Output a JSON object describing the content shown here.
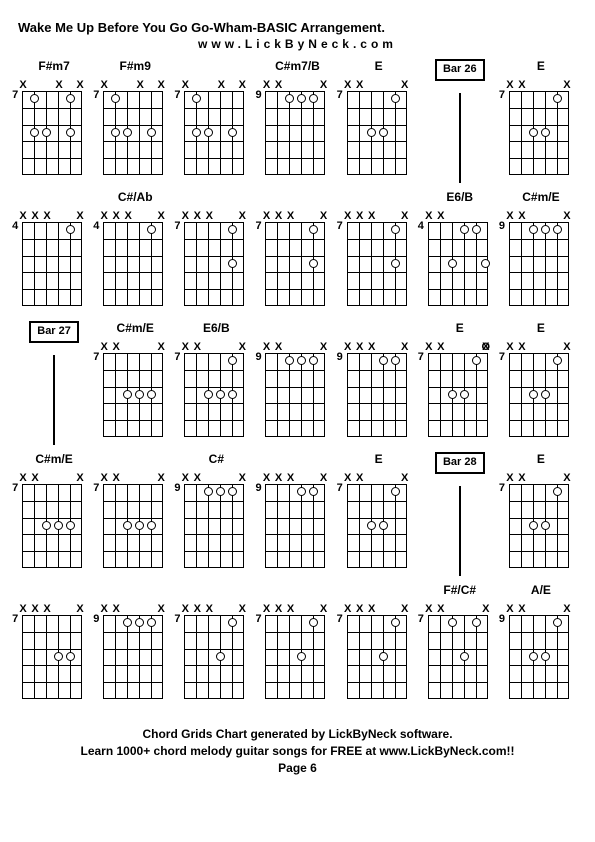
{
  "title": "Wake Me Up Before You Go Go-Wham-BASIC Arrangement.",
  "subtitle": "www.LickByNeck.com",
  "footer_line1": "Chord Grids Chart generated by LickByNeck software.",
  "footer_line2": "Learn 1000+ chord melody guitar songs for FREE at www.LickByNeck.com!!",
  "footer_page": "Page 6",
  "rows": [
    [
      {
        "type": "chord",
        "label": "F#m7",
        "fret": "7",
        "x": [
          0,
          3,
          5
        ],
        "dots": [
          [
            1,
            2
          ],
          [
            2,
            2
          ],
          [
            4,
            2
          ],
          [
            1,
            0
          ],
          [
            4,
            0
          ]
        ]
      },
      {
        "type": "chord",
        "label": "F#m9",
        "fret": "7",
        "x": [
          0,
          3,
          5
        ],
        "dots": [
          [
            1,
            2
          ],
          [
            2,
            2
          ],
          [
            4,
            2
          ],
          [
            1,
            0
          ]
        ]
      },
      {
        "type": "chord",
        "label": "",
        "fret": "7",
        "x": [
          0,
          3,
          5
        ],
        "dots": [
          [
            1,
            2
          ],
          [
            2,
            2
          ],
          [
            4,
            2
          ],
          [
            1,
            0
          ]
        ]
      },
      {
        "type": "chord",
        "label": "C#m7/B",
        "fret": "9",
        "x": [
          0,
          1,
          5
        ],
        "dots": [
          [
            2,
            0
          ],
          [
            3,
            0
          ],
          [
            4,
            0
          ]
        ]
      },
      {
        "type": "chord",
        "label": "E",
        "fret": "7",
        "x": [
          0,
          1,
          5
        ],
        "dots": [
          [
            2,
            2
          ],
          [
            3,
            2
          ],
          [
            4,
            0
          ]
        ]
      },
      {
        "type": "bar",
        "label": "Bar 26"
      },
      {
        "type": "chord",
        "label": "E",
        "fret": "7",
        "x": [
          0,
          1,
          5
        ],
        "dots": [
          [
            2,
            2
          ],
          [
            3,
            2
          ],
          [
            4,
            0
          ]
        ]
      }
    ],
    [
      {
        "type": "chord",
        "label": "",
        "fret": "4",
        "x": [
          0,
          1,
          2,
          5
        ],
        "dots": [
          [
            4,
            0
          ]
        ]
      },
      {
        "type": "chord",
        "label": "C#/Ab",
        "fret": "4",
        "x": [
          0,
          1,
          2,
          5
        ],
        "dots": [
          [
            4,
            0
          ]
        ]
      },
      {
        "type": "chord",
        "label": "",
        "fret": "7",
        "x": [
          0,
          1,
          2,
          5
        ],
        "dots": [
          [
            4,
            0
          ],
          [
            4,
            2
          ]
        ]
      },
      {
        "type": "chord",
        "label": "",
        "fret": "7",
        "x": [
          0,
          1,
          2,
          5
        ],
        "dots": [
          [
            4,
            0
          ],
          [
            4,
            2
          ]
        ]
      },
      {
        "type": "chord",
        "label": "",
        "fret": "7",
        "x": [
          0,
          1,
          2,
          5
        ],
        "dots": [
          [
            4,
            0
          ],
          [
            4,
            2
          ]
        ]
      },
      {
        "type": "chord",
        "label": "E6/B",
        "fret": "4",
        "x": [
          0,
          1
        ],
        "dots": [
          [
            2,
            2
          ],
          [
            3,
            0
          ],
          [
            5,
            2
          ],
          [
            4,
            0
          ]
        ]
      },
      {
        "type": "chord",
        "label": "C#m/E",
        "fret": "9",
        "x": [
          0,
          1,
          5
        ],
        "dots": [
          [
            2,
            0
          ],
          [
            3,
            0
          ],
          [
            4,
            0
          ]
        ]
      }
    ],
    [
      {
        "type": "bar",
        "label": "Bar 27"
      },
      {
        "type": "chord",
        "label": "C#m/E",
        "fret": "7",
        "x": [
          0,
          1,
          5
        ],
        "dots": [
          [
            2,
            2
          ],
          [
            3,
            2
          ],
          [
            4,
            2
          ]
        ]
      },
      {
        "type": "chord",
        "label": "E6/B",
        "fret": "7",
        "x": [
          0,
          1,
          5
        ],
        "dots": [
          [
            2,
            2
          ],
          [
            3,
            2
          ],
          [
            4,
            2
          ],
          [
            4,
            0
          ]
        ]
      },
      {
        "type": "chord",
        "label": "",
        "fret": "9",
        "x": [
          0,
          1,
          5
        ],
        "dots": [
          [
            2,
            0
          ],
          [
            3,
            0
          ],
          [
            4,
            0
          ]
        ]
      },
      {
        "type": "chord",
        "label": "",
        "fret": "9",
        "x": [
          0,
          1,
          2,
          5
        ],
        "dots": [
          [
            3,
            0
          ],
          [
            4,
            0
          ]
        ]
      },
      {
        "type": "chord",
        "label": "E",
        "fret": "7",
        "x": [
          0,
          1,
          5
        ],
        "dots": [
          [
            2,
            2
          ],
          [
            3,
            2
          ],
          [
            4,
            0
          ]
        ],
        "open": [
          5
        ]
      },
      {
        "type": "chord",
        "label": "E",
        "fret": "7",
        "x": [
          0,
          1,
          5
        ],
        "dots": [
          [
            2,
            2
          ],
          [
            3,
            2
          ],
          [
            4,
            0
          ]
        ]
      }
    ],
    [
      {
        "type": "chord",
        "label": "C#m/E",
        "fret": "7",
        "x": [
          0,
          1,
          5
        ],
        "dots": [
          [
            2,
            2
          ],
          [
            3,
            2
          ],
          [
            4,
            2
          ]
        ]
      },
      {
        "type": "chord",
        "label": "",
        "fret": "7",
        "x": [
          0,
          1,
          5
        ],
        "dots": [
          [
            2,
            2
          ],
          [
            3,
            2
          ],
          [
            4,
            2
          ]
        ]
      },
      {
        "type": "chord",
        "label": "C#",
        "fret": "9",
        "x": [
          0,
          1,
          5
        ],
        "dots": [
          [
            2,
            0
          ],
          [
            3,
            0
          ],
          [
            4,
            0
          ]
        ]
      },
      {
        "type": "chord",
        "label": "",
        "fret": "9",
        "x": [
          0,
          1,
          2,
          5
        ],
        "dots": [
          [
            3,
            0
          ],
          [
            4,
            0
          ]
        ]
      },
      {
        "type": "chord",
        "label": "E",
        "fret": "7",
        "x": [
          0,
          1,
          5
        ],
        "dots": [
          [
            2,
            2
          ],
          [
            3,
            2
          ],
          [
            4,
            0
          ]
        ]
      },
      {
        "type": "bar",
        "label": "Bar 28"
      },
      {
        "type": "chord",
        "label": "E",
        "fret": "7",
        "x": [
          0,
          1,
          5
        ],
        "dots": [
          [
            2,
            2
          ],
          [
            3,
            2
          ],
          [
            4,
            0
          ]
        ]
      }
    ],
    [
      {
        "type": "chord",
        "label": "",
        "fret": "7",
        "x": [
          0,
          1,
          2,
          5
        ],
        "dots": [
          [
            3,
            2
          ],
          [
            4,
            2
          ]
        ]
      },
      {
        "type": "chord",
        "label": "",
        "fret": "9",
        "x": [
          0,
          1,
          5
        ],
        "dots": [
          [
            2,
            0
          ],
          [
            3,
            0
          ],
          [
            4,
            0
          ]
        ]
      },
      {
        "type": "chord",
        "label": "",
        "fret": "7",
        "x": [
          0,
          1,
          2,
          5
        ],
        "dots": [
          [
            3,
            2
          ],
          [
            4,
            0
          ]
        ]
      },
      {
        "type": "chord",
        "label": "",
        "fret": "7",
        "x": [
          0,
          1,
          2,
          5
        ],
        "dots": [
          [
            3,
            2
          ],
          [
            4,
            0
          ]
        ]
      },
      {
        "type": "chord",
        "label": "",
        "fret": "7",
        "x": [
          0,
          1,
          2,
          5
        ],
        "dots": [
          [
            3,
            2
          ],
          [
            4,
            0
          ]
        ]
      },
      {
        "type": "chord",
        "label": "F#/C#",
        "fret": "7",
        "x": [
          0,
          1,
          5
        ],
        "dots": [
          [
            2,
            0
          ],
          [
            3,
            2
          ],
          [
            4,
            0
          ]
        ]
      },
      {
        "type": "chord",
        "label": "A/E",
        "fret": "9",
        "x": [
          0,
          1,
          5
        ],
        "dots": [
          [
            2,
            2
          ],
          [
            3,
            2
          ],
          [
            4,
            0
          ]
        ]
      }
    ]
  ]
}
